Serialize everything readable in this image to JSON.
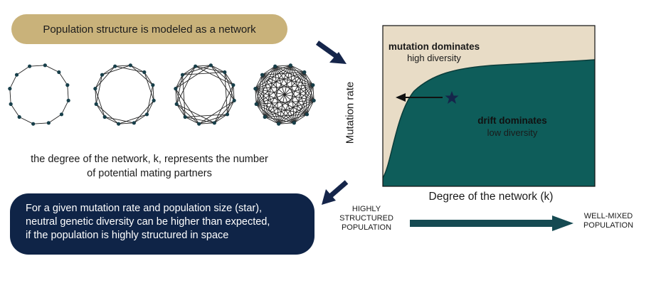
{
  "header": {
    "label": "Population structure is modeled as a network"
  },
  "networks": {
    "ring_count": 4,
    "node_count": 12,
    "degrees": [
      2,
      4,
      6,
      11
    ]
  },
  "degree_text": {
    "line1": "the degree of the network, k, represents the number",
    "line2": "of potential mating partners"
  },
  "plot": {
    "ylabel": "Mutation rate",
    "xlabel": "Degree of the network (k)",
    "upper_title": "mutation dominates",
    "upper_sub": "high diversity",
    "lower_title": "drift dominates",
    "lower_sub": "low diversity",
    "colors": {
      "upper": "#e8dcc6",
      "lower": "#0e5d5a",
      "star": "#15254a"
    }
  },
  "conclusion": {
    "line1": "For a given mutation rate and population size (star),",
    "line2": "neutral genetic diversity can be higher than expected,",
    "line3": "if the population is highly structured in space"
  },
  "gradient": {
    "left_line1": "HIGHLY",
    "left_line2": "STRUCTURED",
    "left_line3": "POPULATION",
    "right_line1": "WELL-MIXED",
    "right_line2": "POPULATION",
    "color": "#154a52"
  },
  "colors": {
    "pill_top": "#c9b27a",
    "pill_bottom": "#0f2447",
    "arrow": "#15254a"
  }
}
